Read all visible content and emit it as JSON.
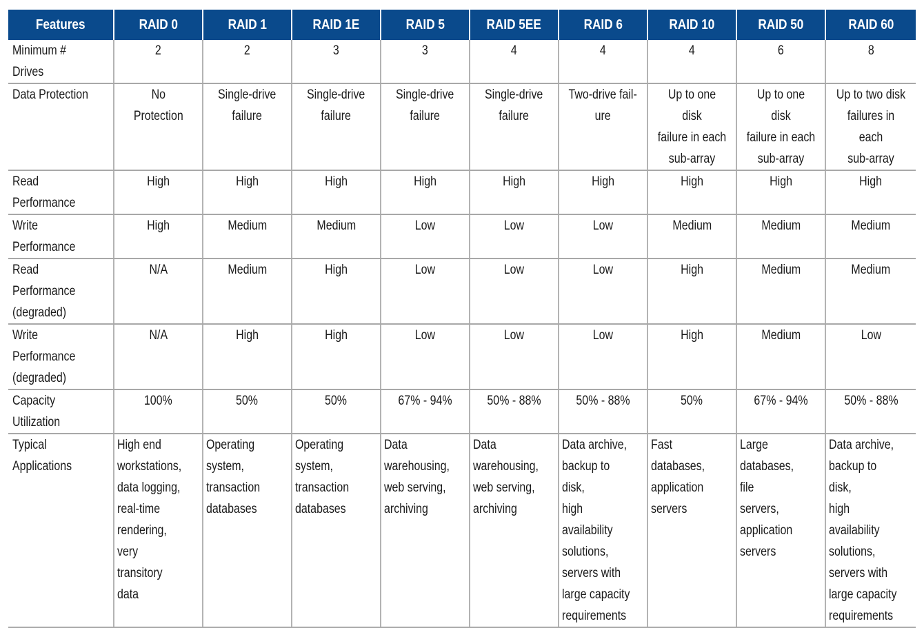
{
  "header": [
    "Features",
    "RAID 0",
    "RAID 1",
    "RAID 1E",
    "RAID 5",
    "RAID 5EE",
    "RAID 6",
    "RAID 10",
    "RAID 50",
    "RAID 60"
  ],
  "rows": [
    {
      "label": "Minimum # Drives",
      "cells": [
        "2",
        "2",
        "3",
        "3",
        "4",
        "4",
        "4",
        "6",
        "8"
      ]
    },
    {
      "label": "Data Protection",
      "cells": [
        "No\nProtection",
        "Single-drive\nfailure",
        "Single-drive\nfailure",
        "Single-drive\nfailure",
        "Single-drive\nfailure",
        "Two-drive fail-\nure",
        "Up to one disk\nfailure in each\nsub-array",
        "Up to one disk\nfailure in each\nsub-array",
        "Up to two disk\nfailures in each\nsub-array"
      ]
    },
    {
      "label": "Read Performance",
      "cells": [
        "High",
        "High",
        "High",
        "High",
        "High",
        "High",
        "High",
        "High",
        "High"
      ]
    },
    {
      "label": "Write Performance",
      "cells": [
        "High",
        "Medium",
        "Medium",
        "Low",
        "Low",
        "Low",
        "Medium",
        "Medium",
        "Medium"
      ]
    },
    {
      "label": "Read Performance\n(degraded)",
      "cells": [
        "N/A",
        "Medium",
        "High",
        "Low",
        "Low",
        "Low",
        "High",
        "Medium",
        "Medium"
      ]
    },
    {
      "label": "Write Performance\n(degraded)",
      "cells": [
        "N/A",
        "High",
        "High",
        "Low",
        "Low",
        "Low",
        "High",
        "Medium",
        "Low"
      ]
    },
    {
      "label": "Capacity Utilization",
      "cells": [
        "100%",
        "50%",
        "50%",
        "67% - 94%",
        "50% - 88%",
        "50% - 88%",
        "50%",
        "67% - 94%",
        "50% - 88%"
      ]
    },
    {
      "label": "Typical\nApplications",
      "cells": [
        "High end\nworkstations,\ndata logging,\nreal-time\nrendering, very\ntransitory data",
        "Operating\nsystem,\ntransaction\ndatabases",
        "Operating\nsystem,\ntransaction\ndatabases",
        "Data\nwarehousing,\nweb serving,\narchiving",
        "Data\nwarehousing,\nweb serving,\narchiving",
        "Data archive,\nbackup to disk,\nhigh availability\nsolutions,\nservers with\nlarge capacity\nrequirements",
        "Fast databases,\napplication\nservers",
        "Large\ndatabases, file\nservers,\napplication\nservers",
        "Data archive,\nbackup to disk,\nhigh availability\nsolutions,\nservers with\nlarge capacity\nrequirements"
      ]
    }
  ],
  "colors": {
    "header_bg": "#0a4a8c",
    "header_text": "#ffffff",
    "grid_line": "#a8a8a8"
  }
}
